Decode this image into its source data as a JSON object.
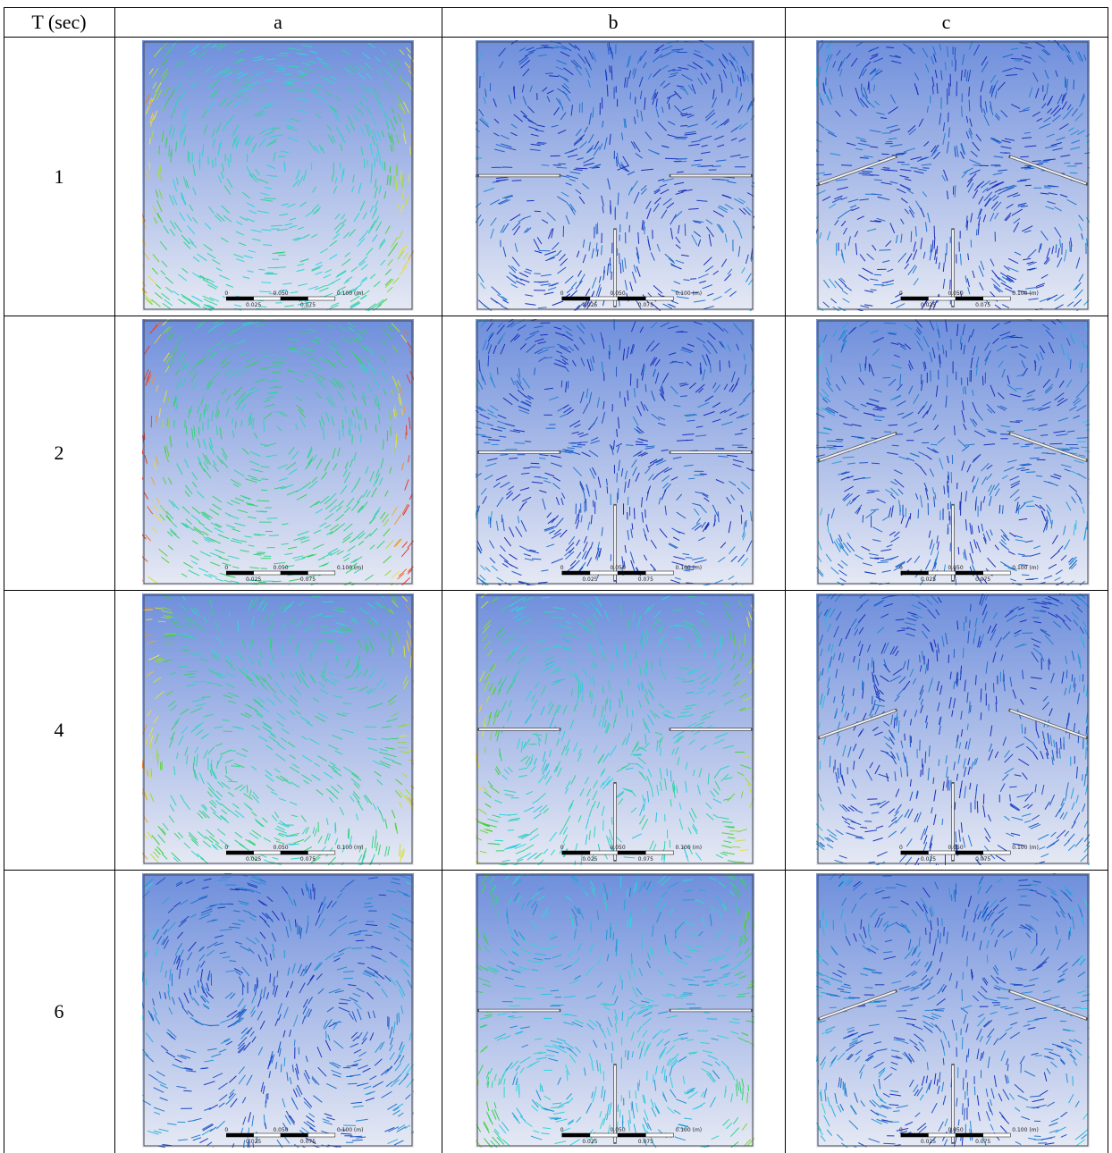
{
  "table": {
    "header": {
      "time": "T (sec)",
      "columns": [
        "a",
        "b",
        "c"
      ]
    },
    "rows": [
      {
        "t": "1"
      },
      {
        "t": "2"
      },
      {
        "t": "4"
      },
      {
        "t": "6"
      }
    ],
    "scale_bar": {
      "labels": [
        "0",
        "0.050",
        "0.100 (m)"
      ],
      "sublabels": [
        "0.025",
        "0.075"
      ]
    }
  },
  "colors": {
    "background_top": "#6f8fdc",
    "background_bottom": "#e6e9f4",
    "low": "#1a2fbd",
    "mid": "#2fd6e6",
    "high_green": "#3ccf3c",
    "high_yellow": "#f2e63a",
    "peak": "#e63a2a"
  }
}
